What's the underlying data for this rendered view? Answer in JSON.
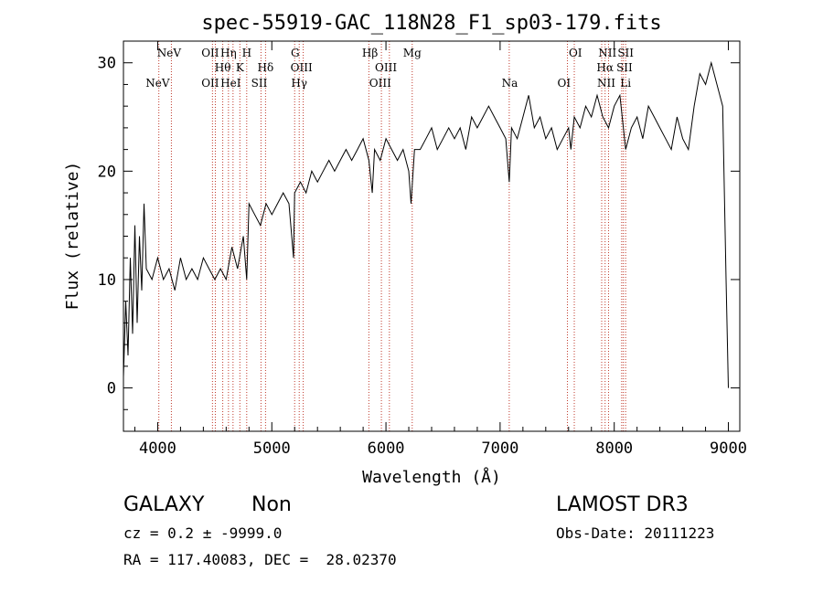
{
  "chart_data": {
    "type": "line",
    "title": "spec-55919-GAC_118N28_F1_sp03-179.fits",
    "xlabel": "Wavelength (Å)",
    "ylabel": "Flux (relative)",
    "xlim": [
      3700,
      9100
    ],
    "ylim": [
      -4,
      32
    ],
    "xticks": [
      4000,
      5000,
      6000,
      7000,
      8000,
      9000
    ],
    "yticks": [
      0,
      10,
      20,
      30
    ],
    "series": [
      {
        "name": "spectrum",
        "x": [
          3700,
          3720,
          3740,
          3760,
          3780,
          3800,
          3820,
          3840,
          3860,
          3880,
          3900,
          3950,
          4000,
          4050,
          4100,
          4150,
          4200,
          4250,
          4300,
          4350,
          4400,
          4450,
          4500,
          4550,
          4600,
          4650,
          4700,
          4750,
          4780,
          4800,
          4850,
          4900,
          4950,
          5000,
          5050,
          5100,
          5150,
          5190,
          5200,
          5250,
          5300,
          5350,
          5400,
          5450,
          5500,
          5550,
          5600,
          5650,
          5700,
          5750,
          5800,
          5850,
          5880,
          5900,
          5950,
          6000,
          6050,
          6100,
          6150,
          6200,
          6220,
          6250,
          6300,
          6350,
          6400,
          6450,
          6500,
          6550,
          6600,
          6650,
          6700,
          6750,
          6800,
          6850,
          6900,
          6950,
          7000,
          7050,
          7080,
          7100,
          7150,
          7200,
          7250,
          7300,
          7350,
          7400,
          7450,
          7500,
          7550,
          7600,
          7620,
          7650,
          7700,
          7750,
          7800,
          7850,
          7900,
          7950,
          8000,
          8050,
          8100,
          8150,
          8200,
          8250,
          8300,
          8350,
          8400,
          8450,
          8500,
          8550,
          8600,
          8650,
          8700,
          8750,
          8800,
          8850,
          8900,
          8950,
          8980,
          9000
        ],
        "values": [
          1,
          8,
          3,
          12,
          5,
          15,
          6,
          14,
          9,
          17,
          11,
          10,
          12,
          10,
          11,
          9,
          12,
          10,
          11,
          10,
          12,
          11,
          10,
          11,
          10,
          13,
          11,
          14,
          10,
          17,
          16,
          15,
          17,
          16,
          17,
          18,
          17,
          12,
          18,
          19,
          18,
          20,
          19,
          20,
          21,
          20,
          21,
          22,
          21,
          22,
          23,
          21,
          18,
          22,
          21,
          23,
          22,
          21,
          22,
          20,
          17,
          22,
          22,
          23,
          24,
          22,
          23,
          24,
          23,
          24,
          22,
          25,
          24,
          25,
          26,
          25,
          24,
          23,
          19,
          24,
          23,
          25,
          27,
          24,
          25,
          23,
          24,
          22,
          23,
          24,
          22,
          25,
          24,
          26,
          25,
          27,
          25,
          24,
          26,
          27,
          22,
          24,
          25,
          23,
          26,
          25,
          24,
          23,
          22,
          25,
          23,
          22,
          26,
          29,
          28,
          30,
          28,
          26,
          10,
          0
        ]
      }
    ],
    "lines_top": [
      {
        "label": "NeV",
        "x": 4100
      },
      {
        "label": "OII",
        "x": 4460
      },
      {
        "label": "Hη",
        "x": 4620
      },
      {
        "label": "H",
        "x": 4780
      },
      {
        "label": "G",
        "x": 5205
      },
      {
        "label": "Hβ",
        "x": 5860
      },
      {
        "label": "Mg",
        "x": 6230
      },
      {
        "label": "OI",
        "x": 7660
      },
      {
        "label": "NII",
        "x": 7940
      },
      {
        "label": "SII",
        "x": 8100
      }
    ],
    "lines_mid": [
      {
        "label": "Hθ",
        "x": 4570
      },
      {
        "label": "K",
        "x": 4720
      },
      {
        "label": "Hδ",
        "x": 4945
      },
      {
        "label": "OIII",
        "x": 5260
      },
      {
        "label": "OIII",
        "x": 6000
      },
      {
        "label": "Hα",
        "x": 7920
      },
      {
        "label": "SII",
        "x": 8090
      }
    ],
    "lines_low": [
      {
        "label": "NeV",
        "x": 4000
      },
      {
        "label": "OII",
        "x": 4460
      },
      {
        "label": "HeI",
        "x": 4640
      },
      {
        "label": "SII",
        "x": 4890
      },
      {
        "label": "Hγ",
        "x": 5240
      },
      {
        "label": "OIII",
        "x": 5950
      },
      {
        "label": "Na",
        "x": 7085
      },
      {
        "label": "OI",
        "x": 7560
      },
      {
        "label": "NII",
        "x": 7930
      },
      {
        "label": "Li",
        "x": 8100
      }
    ],
    "marker_positions": [
      4010,
      4120,
      4480,
      4505,
      4570,
      4620,
      4660,
      4720,
      4780,
      4905,
      4945,
      5200,
      5240,
      5275,
      5850,
      5960,
      6030,
      6230,
      7080,
      7590,
      7650,
      7890,
      7920,
      7950,
      8065,
      8080,
      8100
    ]
  },
  "info": {
    "class": "GALAXY",
    "subclass": "Non",
    "cz_line": "cz = 0.2 ± -9999.0",
    "radec_line": "RA = 117.40083, DEC =  28.02370",
    "survey": "LAMOST DR3",
    "obs_date": "Obs-Date: 20111223"
  }
}
